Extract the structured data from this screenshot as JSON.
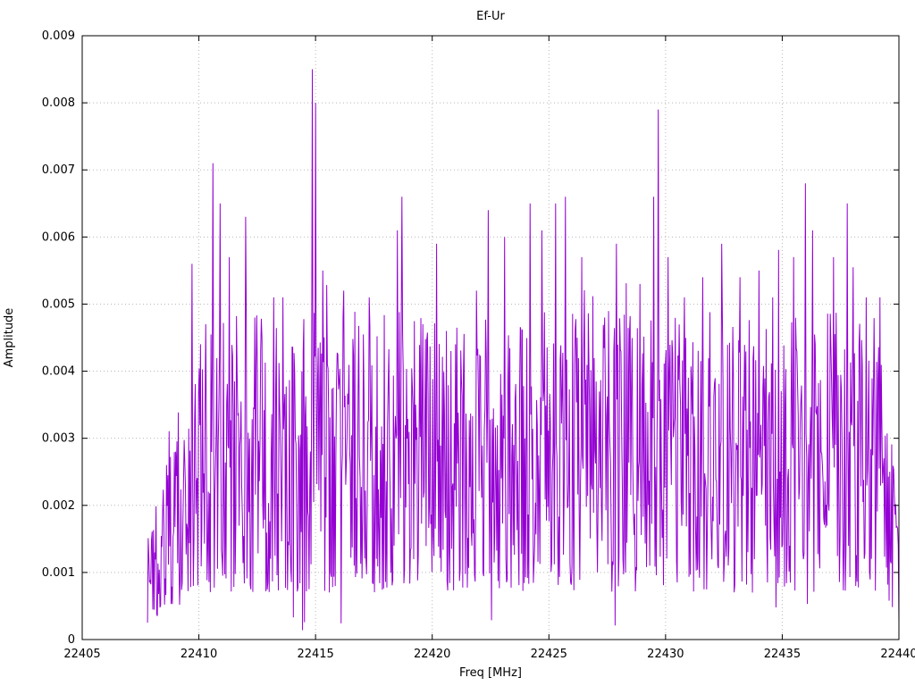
{
  "chart_data": {
    "type": "line",
    "title": "Ef-Ur",
    "xlabel": "Freq [MHz]",
    "ylabel": "Amplitude",
    "xlim": [
      22405,
      22440
    ],
    "ylim": [
      0,
      0.009
    ],
    "x_tick_labels": [
      "22405",
      "22410",
      "22415",
      "22420",
      "22425",
      "22430",
      "22435",
      "22440"
    ],
    "x_tick_values": [
      22405,
      22410,
      22415,
      22420,
      22425,
      22430,
      22435,
      22440
    ],
    "y_tick_labels": [
      "0",
      "0.001",
      "0.002",
      "0.003",
      "0.004",
      "0.005",
      "0.006",
      "0.007",
      "0.008",
      "0.009"
    ],
    "y_tick_values": [
      0,
      0.001,
      0.002,
      0.003,
      0.004,
      0.005,
      0.006,
      0.007,
      0.008,
      0.009
    ],
    "grid": true,
    "legend_position": "none",
    "series": [
      {
        "name": "Ef-Ur",
        "color": "#9400D3",
        "style": "dense noise spectrum, lines",
        "x_start": 22407.8,
        "x_end": 22440.0,
        "samples": 1150,
        "seed": 1234,
        "noise_floor_range": [
          0.0007,
          0.0049
        ],
        "start_ramp_until": 22410.0,
        "end_falloff_from": 22439.2,
        "peaks": [
          [
            22409.0,
            0.0028
          ],
          [
            22409.7,
            0.0056
          ],
          [
            22410.3,
            0.0047
          ],
          [
            22410.6,
            0.0071
          ],
          [
            22410.9,
            0.0065
          ],
          [
            22411.3,
            0.0057
          ],
          [
            22412.0,
            0.0063
          ],
          [
            22412.4,
            0.0048
          ],
          [
            22413.2,
            0.0051
          ],
          [
            22413.6,
            0.0051
          ],
          [
            22414.85,
            0.0085
          ],
          [
            22415.0,
            0.008
          ],
          [
            22415.3,
            0.0055
          ],
          [
            22416.2,
            0.0052
          ],
          [
            22417.3,
            0.0051
          ],
          [
            22418.5,
            0.0061
          ],
          [
            22418.7,
            0.0066
          ],
          [
            22419.6,
            0.0047
          ],
          [
            22420.2,
            0.0059
          ],
          [
            22421.0,
            0.0044
          ],
          [
            22421.9,
            0.0052
          ],
          [
            22422.4,
            0.0064
          ],
          [
            22423.1,
            0.006
          ],
          [
            22424.2,
            0.0065
          ],
          [
            22424.7,
            0.0061
          ],
          [
            22425.3,
            0.0065
          ],
          [
            22425.7,
            0.0066
          ],
          [
            22426.4,
            0.0057
          ],
          [
            22427.4,
            0.0048
          ],
          [
            22427.9,
            0.0059
          ],
          [
            22428.9,
            0.0053
          ],
          [
            22429.5,
            0.0066
          ],
          [
            22429.7,
            0.0079
          ],
          [
            22430.1,
            0.0057
          ],
          [
            22430.8,
            0.0051
          ],
          [
            22431.6,
            0.0054
          ],
          [
            22432.4,
            0.0059
          ],
          [
            22433.2,
            0.0054
          ],
          [
            22434.0,
            0.0055
          ],
          [
            22434.6,
            0.0051
          ],
          [
            22435.5,
            0.0057
          ],
          [
            22436.0,
            0.0068
          ],
          [
            22436.3,
            0.0061
          ],
          [
            22437.2,
            0.0057
          ],
          [
            22437.8,
            0.0065
          ],
          [
            22438.6,
            0.0051
          ],
          [
            22439.2,
            0.0051
          ]
        ]
      }
    ],
    "colors": {
      "series": "#9400D3",
      "grid": "#b8b8b8",
      "border": "#000000",
      "background": "#ffffff"
    }
  }
}
